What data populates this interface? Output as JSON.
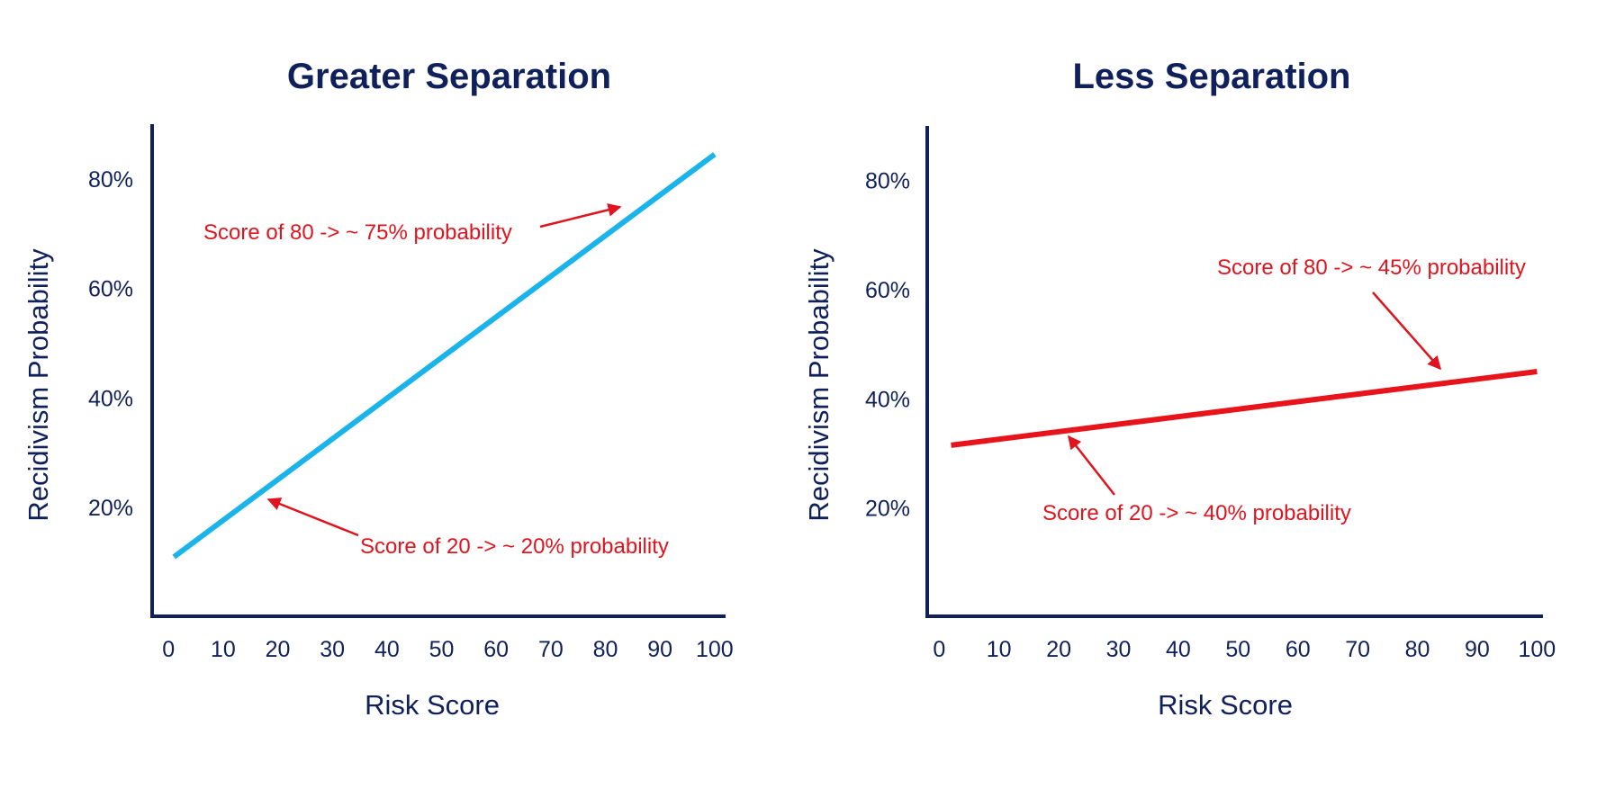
{
  "colors": {
    "axis": "#10205a",
    "text": "#10205a",
    "annotation": "#e0141e",
    "line_left": "#1ab4ea",
    "line_right": "#e8141c"
  },
  "chart_data": [
    {
      "type": "line",
      "title": "Greater Separation",
      "xlabel": "Risk Score",
      "ylabel": "Recidivism Probability",
      "xlim": [
        -3,
        102
      ],
      "ylim": [
        0,
        90
      ],
      "xticks": [
        0,
        10,
        20,
        30,
        40,
        50,
        60,
        70,
        80,
        90,
        100
      ],
      "yticks": [
        20,
        40,
        60,
        80
      ],
      "ytick_labels": [
        "20%",
        "40%",
        "60%",
        "80%"
      ],
      "grid": false,
      "legend": "none",
      "series": [
        {
          "x": [
            1,
            100
          ],
          "y": [
            11,
            84.5
          ]
        }
      ],
      "annotations": [
        {
          "text": "Score of 80 -> ~ 75% probability",
          "x": 83,
          "y": 74
        },
        {
          "text": "Score of 20 -> ~ 20% probability",
          "x": 19,
          "y": 21.5
        }
      ]
    },
    {
      "type": "line",
      "title": "Less Separation",
      "xlabel": "Risk Score",
      "ylabel": "Recidivism Probability",
      "xlim": [
        -2,
        101
      ],
      "ylim": [
        0,
        90
      ],
      "xticks": [
        0,
        10,
        20,
        30,
        40,
        50,
        60,
        70,
        80,
        90,
        100
      ],
      "yticks": [
        20,
        40,
        60,
        80
      ],
      "ytick_labels": [
        "20%",
        "40%",
        "60%",
        "80%"
      ],
      "grid": false,
      "legend": "none",
      "series": [
        {
          "x": [
            2,
            100
          ],
          "y": [
            31.5,
            45
          ]
        }
      ],
      "annotations": [
        {
          "text": "Score of 80 -> ~ 45% probability",
          "x": 85,
          "y": 45
        },
        {
          "text": "Score of 20 -> ~ 40% probability",
          "x": 21,
          "y": 37
        }
      ]
    }
  ]
}
